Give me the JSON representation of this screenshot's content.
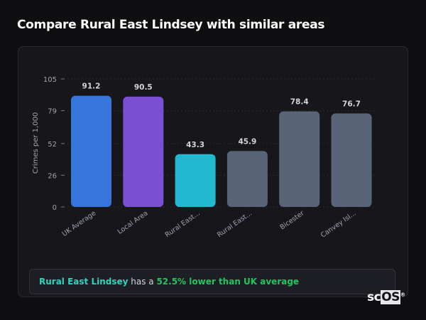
{
  "title": "Compare Rural East Lindsey with similar areas",
  "chart_data": {
    "type": "bar",
    "categories": [
      "UK Average",
      "Local Area",
      "Rural East...",
      "Rural East...",
      "Bicester",
      "Canvey Isl..."
    ],
    "values": [
      91.2,
      90.5,
      43.3,
      45.9,
      78.4,
      76.7
    ],
    "data_labels": [
      "91.2",
      "90.5",
      "43.3",
      "45.9",
      "78.4",
      "76.7"
    ],
    "colors": [
      "#3575dc",
      "#7a4fd4",
      "#22b8cf",
      "#5a6478",
      "#5a6478",
      "#5a6478"
    ],
    "ylabel": "Crimes per 1,000",
    "xlabel": "",
    "ylim": [
      0,
      105
    ],
    "yticks": [
      0,
      26,
      52,
      79,
      105
    ],
    "grid": true
  },
  "summary": {
    "area": "Rural East Lindsey",
    "connector": " has a ",
    "comparison": "52.5% lower than UK average"
  },
  "logo": {
    "text1": "sc",
    "text2": "OS",
    "mark": "®"
  }
}
